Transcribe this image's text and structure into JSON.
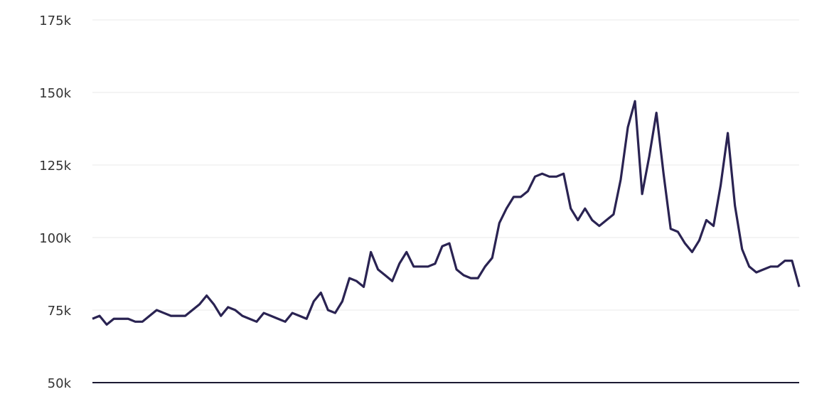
{
  "chart_data": {
    "type": "line",
    "series": [
      {
        "color": "#2a2352",
        "values": [
          72000,
          73000,
          70000,
          72000,
          72000,
          72000,
          71000,
          71000,
          73000,
          75000,
          74000,
          73000,
          73000,
          73000,
          75000,
          77000,
          80000,
          77000,
          73000,
          76000,
          75000,
          73000,
          72000,
          71000,
          74000,
          73000,
          72000,
          71000,
          74000,
          73000,
          72000,
          78000,
          81000,
          75000,
          74000,
          78000,
          86000,
          85000,
          83000,
          95000,
          89000,
          87000,
          85000,
          91000,
          95000,
          90000,
          90000,
          90000,
          91000,
          97000,
          98000,
          89000,
          87000,
          86000,
          86000,
          90000,
          93000,
          105000,
          110000,
          114000,
          114000,
          116000,
          121000,
          122000,
          121000,
          121000,
          122000,
          110000,
          106000,
          110000,
          106000,
          104000,
          106000,
          108000,
          120000,
          138000,
          147000,
          115000,
          128000,
          143000,
          122000,
          103000,
          102000,
          98000,
          95000,
          99000,
          106000,
          104000,
          118000,
          136000,
          111000,
          96000,
          90000,
          88000,
          89000,
          90000,
          90000,
          92000,
          92000,
          83000
        ]
      }
    ],
    "ylim": [
      50000,
      175000
    ],
    "yticks": [
      {
        "value": 50000,
        "label": "50k"
      },
      {
        "value": 75000,
        "label": "75k"
      },
      {
        "value": 100000,
        "label": "100k"
      },
      {
        "value": 125000,
        "label": "125k"
      },
      {
        "value": 150000,
        "label": "150k"
      },
      {
        "value": 175000,
        "label": "175k"
      }
    ],
    "grid": true
  }
}
